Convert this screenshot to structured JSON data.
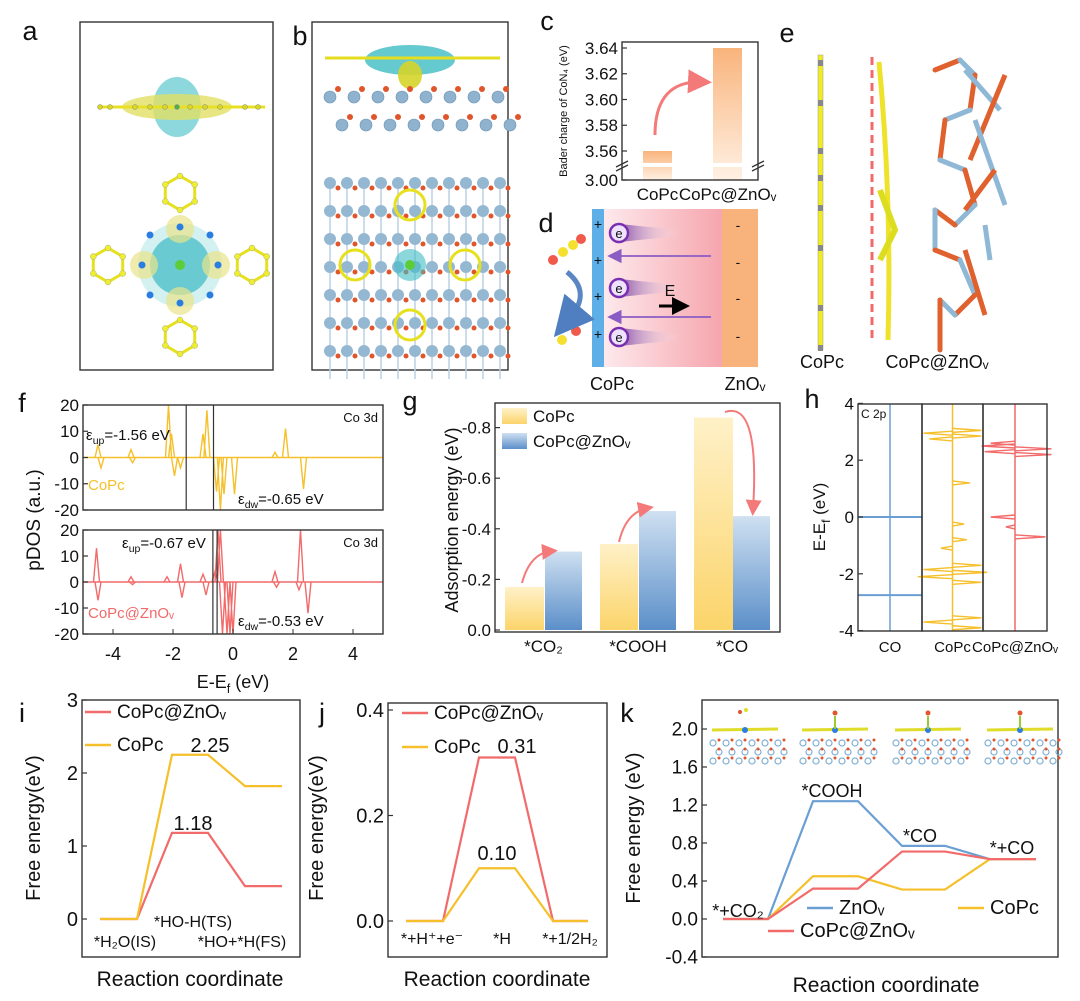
{
  "figure_labels": {
    "a": "a",
    "b": "b",
    "c": "c",
    "d": "d",
    "e": "e",
    "f": "f",
    "g": "g",
    "h": "h",
    "i": "i",
    "j": "j",
    "k": "k"
  },
  "colors": {
    "copc": "#f5c02c",
    "copc_znov": "#f26a6a",
    "znov": "#6b9fd4",
    "bar_orange": "#f9b47c",
    "bar_yellow": "#fbd46a",
    "bar_blue": "#5b8fc9",
    "arrow": "#f47a7a"
  },
  "panel_d": {
    "left_label": "CoPc",
    "right_label": "ZnOᵥ",
    "field_label": "E",
    "electron_label": "e",
    "plus": "+",
    "minus": "-"
  },
  "panel_e": {
    "left_label": "CoPc",
    "right_label": "CoPc@ZnOᵥ"
  },
  "chart_data": [
    {
      "id": "c",
      "type": "bar",
      "ylabel": "Bader charge of CoN₄ (eV)",
      "categories": [
        "CoPc",
        "CoPc@ZnOᵥ"
      ],
      "values": [
        3.56,
        3.64
      ],
      "yticks": [
        "3.00",
        "3.56",
        "3.58",
        "3.60",
        "3.62",
        "3.64"
      ],
      "ylim": [
        3.55,
        3.645
      ],
      "axis_break": [
        3.0,
        3.55
      ]
    },
    {
      "id": "f",
      "type": "line",
      "xlabel": {
        "main": "E-E",
        "sub": "f",
        "unit": " (eV)"
      },
      "ylabel": "pDOS (a.u.)",
      "xticks": [
        "-4",
        "-2",
        "0",
        "2",
        "4"
      ],
      "xlim": [
        -5,
        5
      ],
      "yticks": [
        "20",
        "10",
        "0",
        "-10",
        "-20"
      ],
      "ylim": [
        -20,
        20
      ],
      "panels": [
        {
          "title": "Co 3d",
          "name": "CoPc",
          "eps_up": {
            "symbol": "ε",
            "sub": "up",
            "value": "=-1.56 eV"
          },
          "eps_dw": {
            "symbol": "ε",
            "sub": "dw",
            "value": "=-0.65 eV"
          },
          "eps_lines": [
            -1.56,
            -0.65
          ],
          "peaks": [
            [
              -4.5,
              5
            ],
            [
              -4.4,
              -4
            ],
            [
              -3.4,
              3
            ],
            [
              -3.35,
              -2
            ],
            [
              -2.15,
              20
            ],
            [
              -2.05,
              9
            ],
            [
              -1.95,
              -7
            ],
            [
              -1.75,
              -4
            ],
            [
              -1.0,
              9
            ],
            [
              -0.87,
              18
            ],
            [
              -0.55,
              -13
            ],
            [
              -0.42,
              -20
            ],
            [
              -0.3,
              -14
            ],
            [
              0.05,
              -14
            ],
            [
              1.4,
              2
            ],
            [
              1.75,
              11
            ],
            [
              2.35,
              -12
            ]
          ]
        },
        {
          "title": "Co 3d",
          "name": "CoPc@ZnOᵥ",
          "eps_up": {
            "symbol": "ε",
            "sub": "up",
            "value": "=-0.67 eV"
          },
          "eps_dw": {
            "symbol": "ε",
            "sub": "dw",
            "value": "=-0.53 eV"
          },
          "eps_lines": [
            -0.67,
            -0.53
          ],
          "peaks": [
            [
              -4.55,
              13
            ],
            [
              -4.5,
              -7
            ],
            [
              -3.4,
              2
            ],
            [
              -3.35,
              -1
            ],
            [
              -2.2,
              2
            ],
            [
              -1.75,
              7
            ],
            [
              -1.7,
              -6
            ],
            [
              -1.0,
              3
            ],
            [
              -0.9,
              -5
            ],
            [
              -0.6,
              4
            ],
            [
              -0.5,
              20
            ],
            [
              -0.42,
              20
            ],
            [
              -0.35,
              -20
            ],
            [
              -0.2,
              -20
            ],
            [
              -0.1,
              -20
            ],
            [
              0.0,
              -20
            ],
            [
              1.4,
              4
            ],
            [
              1.45,
              -2
            ],
            [
              2.2,
              -3
            ],
            [
              2.25,
              20
            ],
            [
              2.5,
              -12
            ]
          ]
        }
      ]
    },
    {
      "id": "g",
      "type": "bar",
      "ylabel": "Adsorption energy (eV)",
      "categories": [
        "*CO₂",
        "*COOH",
        "*CO"
      ],
      "series": [
        {
          "name": "CoPc",
          "values": [
            -0.17,
            -0.34,
            -0.84
          ]
        },
        {
          "name": "CoPc@ZnOᵥ",
          "values": [
            -0.31,
            -0.47,
            -0.45
          ]
        }
      ],
      "yticks": [
        "-0.8",
        "-0.6",
        "-0.4",
        "-0.2",
        "0.0"
      ],
      "ylim": [
        0,
        -0.9
      ]
    },
    {
      "id": "h",
      "type": "line",
      "ylabel": {
        "main": "E-E",
        "sub": "f",
        "unit": " (eV)"
      },
      "annotation": "C 2p",
      "yticks": [
        "4",
        "2",
        "0",
        "-2",
        "-4"
      ],
      "ylim": [
        -4,
        4
      ],
      "panels": [
        {
          "name": "CO",
          "levels": [
            0,
            -2.75
          ]
        },
        {
          "name": "CoPc",
          "peaks": [
            [
              3.05,
              1
            ],
            [
              2.95,
              -1
            ],
            [
              2.85,
              1
            ],
            [
              2.75,
              -0.8
            ],
            [
              1.2,
              0.6
            ],
            [
              -0.25,
              0.4
            ],
            [
              -0.8,
              0.5
            ],
            [
              -1.1,
              -0.4
            ],
            [
              -1.7,
              1
            ],
            [
              -1.85,
              -1
            ],
            [
              -1.95,
              1.2
            ],
            [
              -2.1,
              -1.2
            ],
            [
              -2.3,
              1
            ],
            [
              -3.55,
              1
            ],
            [
              -3.7,
              -1
            ],
            [
              -3.9,
              1
            ]
          ]
        },
        {
          "name": "CoPc@ZnOᵥ",
          "peaks": [
            [
              2.6,
              -0.8
            ],
            [
              2.5,
              -1.1
            ],
            [
              2.4,
              1.2
            ],
            [
              2.3,
              -1
            ],
            [
              2.2,
              1.2
            ],
            [
              0,
              -0.8
            ],
            [
              -0.35,
              -0.3
            ],
            [
              -0.7,
              1
            ]
          ]
        }
      ]
    },
    {
      "id": "i",
      "type": "line",
      "xlabel": "Reaction coordinate",
      "ylabel": "Free energy(eV)",
      "yticks": [
        "0",
        "1",
        "2",
        "3"
      ],
      "ylim": [
        -0.52,
        3
      ],
      "states": [
        "*H₂O(IS)",
        "*HO-H(TS)",
        "*HO+*H(FS)"
      ],
      "series": [
        {
          "name": "CoPc@ZnOᵥ",
          "values": [
            0,
            1.18,
            0.45
          ]
        },
        {
          "name": "CoPc",
          "values": [
            0,
            2.25,
            1.82
          ]
        }
      ],
      "annotations": [
        "2.25",
        "1.18"
      ]
    },
    {
      "id": "j",
      "type": "line",
      "xlabel": "Reaction coordinate",
      "ylabel": "Free energy(eV)",
      "yticks": [
        "0.0",
        "0.2",
        "0.4"
      ],
      "ylim": [
        -0.07,
        0.413
      ],
      "states": [
        "*+H⁺+e⁻",
        "*H",
        "*+1/2H₂"
      ],
      "series": [
        {
          "name": "CoPc@ZnOᵥ",
          "values": [
            0,
            0.31,
            0
          ]
        },
        {
          "name": "CoPc",
          "values": [
            0,
            0.1,
            0
          ]
        }
      ],
      "annotations": [
        "0.31",
        "0.10"
      ]
    },
    {
      "id": "k",
      "type": "line",
      "xlabel": "Reaction coordinate",
      "ylabel": "Free energy (eV)",
      "yticks": [
        "-0.4",
        "0.0",
        "0.4",
        "0.8",
        "1.2",
        "1.6",
        "2.0"
      ],
      "ylim": [
        -0.4,
        2.3
      ],
      "states": [
        "*+CO₂",
        "*COOH",
        "*CO",
        "*+CO"
      ],
      "series": [
        {
          "name": "ZnOᵥ",
          "values": [
            0,
            1.24,
            0.77,
            0.63
          ]
        },
        {
          "name": "CoPc",
          "values": [
            0,
            0.45,
            0.31,
            0.63
          ]
        },
        {
          "name": "CoPc@ZnOᵥ",
          "values": [
            0,
            0.32,
            0.71,
            0.63
          ]
        }
      ]
    }
  ]
}
